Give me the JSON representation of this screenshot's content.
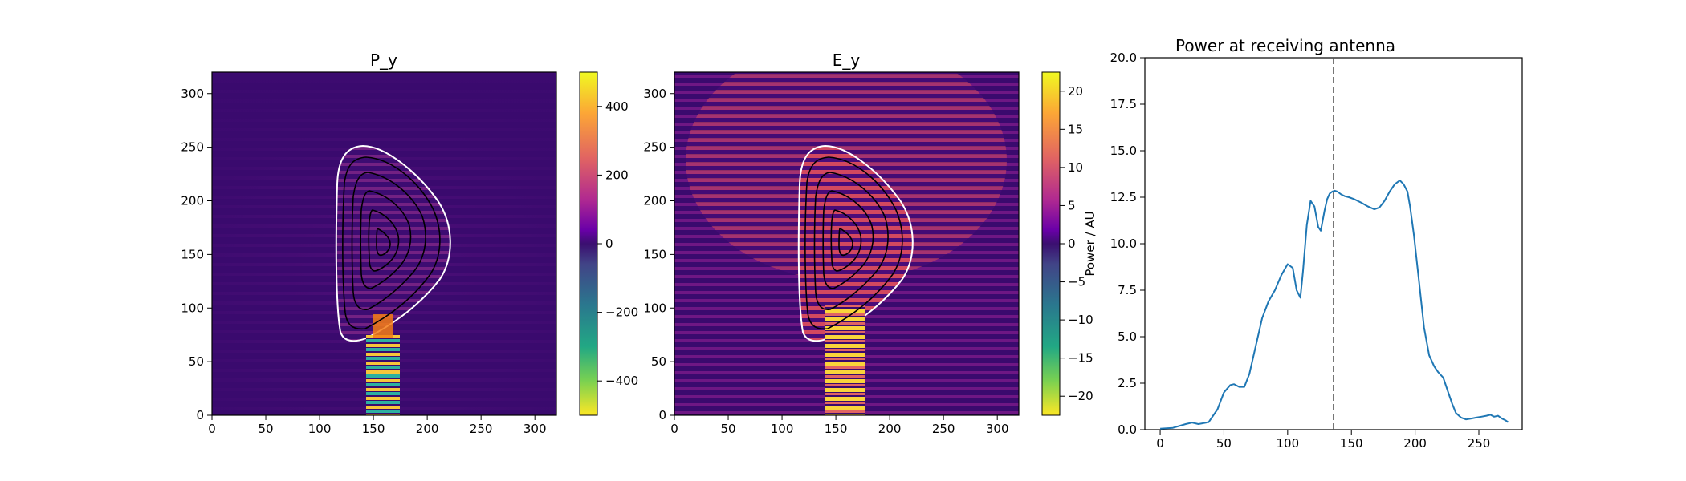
{
  "chart_data": [
    {
      "type": "heatmap",
      "title": "P_y",
      "xlim": [
        0,
        320
      ],
      "ylim": [
        0,
        320
      ],
      "xticks": [
        0,
        50,
        100,
        150,
        200,
        250,
        300
      ],
      "yticks": [
        0,
        50,
        100,
        150,
        200,
        250,
        300
      ],
      "colorbar": {
        "colormap": "plasma-viridis diverging",
        "range": [
          -500,
          500
        ],
        "ticks": [
          400,
          200,
          0,
          -200,
          -400
        ],
        "tick_labels": [
          "400",
          "200",
          "0",
          "−200",
          "−400"
        ]
      },
      "overlay": "plasma boundary (white) with flux-surface contours (black)",
      "beam": "vertical beam centered at x≈160 entering from y=0"
    },
    {
      "type": "heatmap",
      "title": "E_y",
      "xlim": [
        0,
        320
      ],
      "ylim": [
        0,
        320
      ],
      "xticks": [
        0,
        50,
        100,
        150,
        200,
        250,
        300
      ],
      "yticks": [
        0,
        50,
        100,
        150,
        200,
        250,
        300
      ],
      "colorbar": {
        "colormap": "plasma-viridis diverging",
        "range": [
          -22.5,
          22.5
        ],
        "ticks": [
          20,
          15,
          10,
          5,
          0,
          -5,
          -10,
          -15,
          -20
        ],
        "tick_labels": [
          "20",
          "15",
          "10",
          "5",
          "0",
          "−5",
          "−10",
          "−15",
          "−20"
        ]
      },
      "overlay": "plasma boundary (white) with flux-surface contours (black)",
      "beam": "vertical beam centered at x≈160 entering from y=0"
    },
    {
      "type": "line",
      "title": "Power at receiving antenna",
      "xlabel": "",
      "ylabel": "Power / AU",
      "xlim": [
        -12,
        284
      ],
      "ylim": [
        0,
        20
      ],
      "xticks": [
        0,
        50,
        100,
        150,
        200,
        250
      ],
      "yticks": [
        0.0,
        2.5,
        5.0,
        7.5,
        10.0,
        12.5,
        15.0,
        17.5,
        20.0
      ],
      "ytick_labels": [
        "0.0",
        "2.5",
        "5.0",
        "7.5",
        "10.0",
        "12.5",
        "15.0",
        "17.5",
        "20.0"
      ],
      "vline_x": 136,
      "series": [
        {
          "x": [
            0,
            10,
            20,
            25,
            30,
            38,
            45,
            50,
            55,
            58,
            62,
            66,
            70,
            75,
            80,
            85,
            90,
            95,
            100,
            104,
            107,
            110,
            112,
            115,
            118,
            121,
            124,
            126,
            129,
            131,
            133,
            135,
            137,
            139,
            142,
            145,
            148,
            152,
            158,
            163,
            168,
            172,
            176,
            180,
            184,
            188,
            191,
            194,
            196,
            199,
            203,
            207,
            211,
            215,
            218,
            222,
            226,
            229,
            232,
            236,
            240,
            244,
            248,
            252,
            256,
            259,
            262,
            265,
            268,
            271,
            273
          ],
          "values": [
            0.05,
            0.1,
            0.3,
            0.38,
            0.3,
            0.4,
            1.1,
            2.0,
            2.4,
            2.45,
            2.3,
            2.3,
            3.0,
            4.5,
            6.0,
            6.9,
            7.5,
            8.3,
            8.9,
            8.7,
            7.5,
            7.1,
            8.5,
            11.0,
            12.3,
            12.0,
            10.9,
            10.7,
            11.8,
            12.4,
            12.7,
            12.8,
            12.85,
            12.8,
            12.65,
            12.55,
            12.5,
            12.4,
            12.2,
            12.0,
            11.85,
            11.95,
            12.3,
            12.8,
            13.2,
            13.4,
            13.2,
            12.8,
            12.0,
            10.5,
            8.0,
            5.5,
            4.0,
            3.4,
            3.1,
            2.8,
            2.0,
            1.4,
            0.9,
            0.65,
            0.55,
            0.6,
            0.65,
            0.7,
            0.75,
            0.8,
            0.7,
            0.75,
            0.6,
            0.5,
            0.4
          ],
          "color": "#1f77b4"
        }
      ]
    }
  ]
}
